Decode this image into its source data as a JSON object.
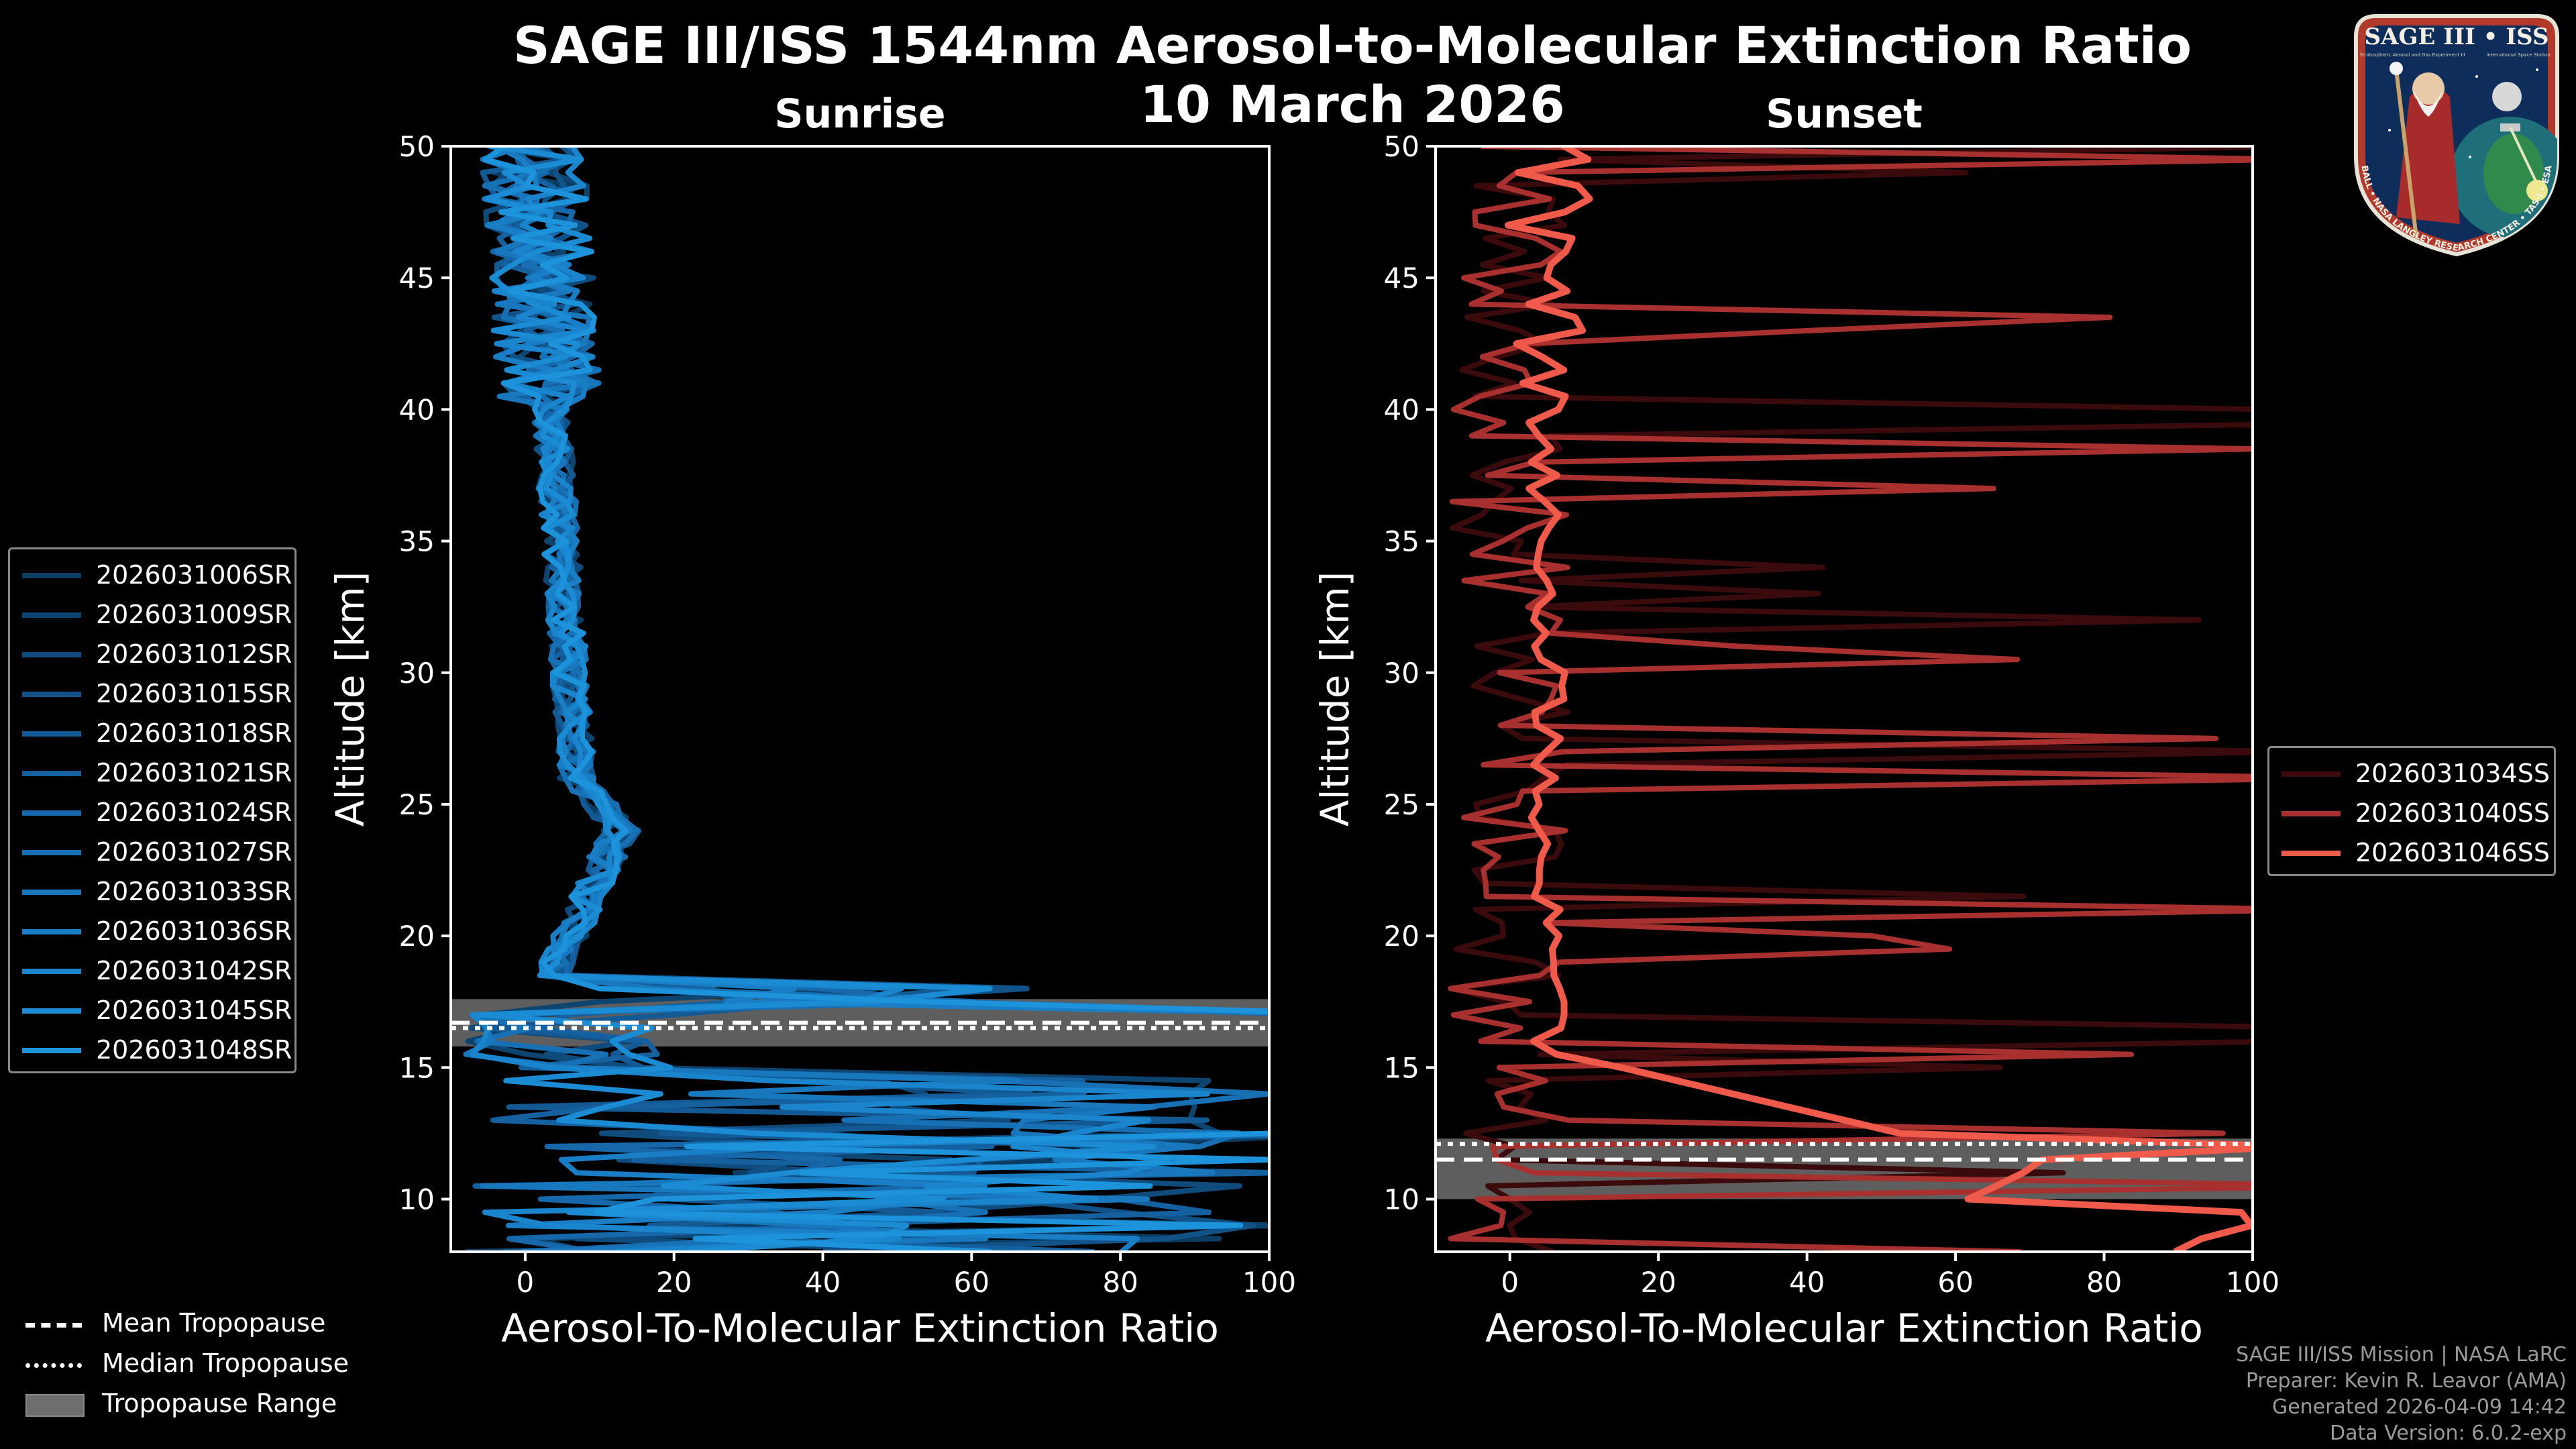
{
  "title_line1": "SAGE III/ISS 1544nm Aerosol-to-Molecular Extinction Ratio",
  "title_line2": "10 March 2026",
  "logo": {
    "top_text": "SAGE III • ISS",
    "sub_text_left": "Stratospheric Aerosol and Gas Experiment III",
    "sub_text_right": "International Space Station",
    "ring_text": "BALL • NASA LANGLEY RESEARCH CENTER • TAS-I • ESA"
  },
  "credits": [
    "SAGE III/ISS Mission | NASA LaRC",
    "Preparer: Kevin R. Leavor (AMA)",
    "Generated 2026-04-09 14:42",
    "Data Version: 6.0.2-exp"
  ],
  "tropopause_legend": [
    {
      "label": "Mean Tropopause",
      "style": "dashed"
    },
    {
      "label": "Median Tropopause",
      "style": "dotted"
    },
    {
      "label": "Tropopause Range",
      "style": "patch"
    }
  ],
  "chart_data": [
    {
      "type": "line",
      "title": "Sunrise",
      "xlabel": "Aerosol-To-Molecular Extinction Ratio",
      "ylabel": "Altitude [km]",
      "xlim": [
        -10,
        100
      ],
      "ylim": [
        8,
        50
      ],
      "xticks": [
        0,
        20,
        40,
        60,
        80,
        100
      ],
      "yticks": [
        10,
        15,
        20,
        25,
        30,
        35,
        40,
        45,
        50
      ],
      "tropopause": {
        "min": 15.8,
        "max": 17.6,
        "mean": 16.7,
        "median": 16.5
      },
      "series": [
        {
          "name": "2026031006SR",
          "color": "#0b3d63"
        },
        {
          "name": "2026031009SR",
          "color": "#0d4470"
        },
        {
          "name": "2026031012SR",
          "color": "#0f4b7c"
        },
        {
          "name": "2026031015SR",
          "color": "#115288"
        },
        {
          "name": "2026031018SR",
          "color": "#135a94"
        },
        {
          "name": "2026031021SR",
          "color": "#1561a0"
        },
        {
          "name": "2026031024SR",
          "color": "#1668aa"
        },
        {
          "name": "2026031027SR",
          "color": "#1770b4"
        },
        {
          "name": "2026031033SR",
          "color": "#1877bd"
        },
        {
          "name": "2026031036SR",
          "color": "#197ec5"
        },
        {
          "name": "2026031042SR",
          "color": "#1a85cd"
        },
        {
          "name": "2026031045SR",
          "color": "#1b8cd4"
        },
        {
          "name": "2026031048SR",
          "color": "#1c93db"
        }
      ]
    },
    {
      "type": "line",
      "title": "Sunset",
      "xlabel": "Aerosol-To-Molecular Extinction Ratio",
      "ylabel": "Altitude [km]",
      "xlim": [
        -10,
        100
      ],
      "ylim": [
        8,
        50
      ],
      "xticks": [
        0,
        20,
        40,
        60,
        80,
        100
      ],
      "yticks": [
        10,
        15,
        20,
        25,
        30,
        35,
        40,
        45,
        50
      ],
      "tropopause": {
        "min": 10.0,
        "max": 12.3,
        "mean": 11.5,
        "median": 12.1
      },
      "series": [
        {
          "name": "2026031034SS",
          "color": "#3a0a0c"
        },
        {
          "name": "2026031040SS",
          "color": "#a8302e"
        },
        {
          "name": "2026031046SS",
          "color": "#ef5a4a"
        }
      ]
    }
  ]
}
